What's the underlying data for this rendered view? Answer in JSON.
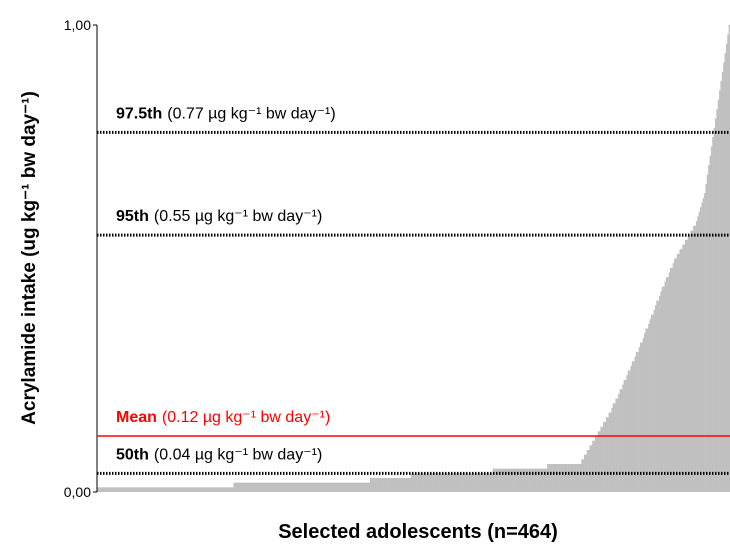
{
  "chart_data": {
    "type": "bar",
    "y_label": "Acrylamide intake (ug kg⁻¹ bw day⁻¹)",
    "x_label": "Selected adolescents (n=464)",
    "color": "#c0c0c0",
    "ylim": [
      0,
      1
    ],
    "yticks": [
      {
        "value": 0,
        "label": "0,00"
      },
      {
        "value": 1,
        "label": "1,00"
      }
    ],
    "reference_lines": [
      {
        "name": "97.5th",
        "value": 0.77,
        "label": "(0.77 µg kg⁻¹ bw day⁻¹)",
        "color": "#000000",
        "style": "dotted"
      },
      {
        "name": "95th",
        "value": 0.55,
        "label": "(0.55 µg kg⁻¹ bw day⁻¹)",
        "color": "#000000",
        "style": "dotted"
      },
      {
        "name": "Mean",
        "value": 0.12,
        "label": "(0.12 µg kg⁻¹ bw day⁻¹)",
        "color": "#ff0000",
        "style": "solid"
      },
      {
        "name": "50th",
        "value": 0.04,
        "label": "(0.04 µg kg⁻¹ bw day⁻¹)",
        "color": "#000000",
        "style": "dotted"
      }
    ],
    "values": [
      0.01,
      0.01,
      0.01,
      0.01,
      0.01,
      0.01,
      0.01,
      0.01,
      0.01,
      0.01,
      0.01,
      0.01,
      0.01,
      0.01,
      0.01,
      0.01,
      0.01,
      0.01,
      0.01,
      0.01,
      0.01,
      0.01,
      0.01,
      0.01,
      0.01,
      0.01,
      0.01,
      0.01,
      0.01,
      0.01,
      0.01,
      0.01,
      0.01,
      0.01,
      0.01,
      0.01,
      0.01,
      0.01,
      0.01,
      0.01,
      0.01,
      0.01,
      0.01,
      0.01,
      0.01,
      0.01,
      0.01,
      0.01,
      0.01,
      0.01,
      0.01,
      0.01,
      0.01,
      0.01,
      0.01,
      0.01,
      0.01,
      0.01,
      0.01,
      0.01,
      0.01,
      0.01,
      0.01,
      0.01,
      0.01,
      0.01,
      0.01,
      0.01,
      0.01,
      0.01,
      0.01,
      0.01,
      0.01,
      0.01,
      0.01,
      0.01,
      0.01,
      0.01,
      0.01,
      0.01,
      0.01,
      0.01,
      0.01,
      0.01,
      0.01,
      0.01,
      0.01,
      0.01,
      0.01,
      0.01,
      0.01,
      0.01,
      0.01,
      0.01,
      0.01,
      0.01,
      0.01,
      0.01,
      0.01,
      0.01,
      0.02,
      0.02,
      0.02,
      0.02,
      0.02,
      0.02,
      0.02,
      0.02,
      0.02,
      0.02,
      0.02,
      0.02,
      0.02,
      0.02,
      0.02,
      0.02,
      0.02,
      0.02,
      0.02,
      0.02,
      0.02,
      0.02,
      0.02,
      0.02,
      0.02,
      0.02,
      0.02,
      0.02,
      0.02,
      0.02,
      0.02,
      0.02,
      0.02,
      0.02,
      0.02,
      0.02,
      0.02,
      0.02,
      0.02,
      0.02,
      0.02,
      0.02,
      0.02,
      0.02,
      0.02,
      0.02,
      0.02,
      0.02,
      0.02,
      0.02,
      0.02,
      0.02,
      0.02,
      0.02,
      0.02,
      0.02,
      0.02,
      0.02,
      0.02,
      0.02,
      0.02,
      0.02,
      0.02,
      0.02,
      0.02,
      0.02,
      0.02,
      0.02,
      0.02,
      0.02,
      0.02,
      0.02,
      0.02,
      0.02,
      0.02,
      0.02,
      0.02,
      0.02,
      0.02,
      0.02,
      0.02,
      0.02,
      0.02,
      0.02,
      0.02,
      0.02,
      0.02,
      0.02,
      0.02,
      0.02,
      0.02,
      0.02,
      0.02,
      0.02,
      0.02,
      0.02,
      0.02,
      0.02,
      0.02,
      0.02,
      0.03,
      0.03,
      0.03,
      0.03,
      0.03,
      0.03,
      0.03,
      0.03,
      0.03,
      0.03,
      0.03,
      0.03,
      0.03,
      0.03,
      0.03,
      0.03,
      0.03,
      0.03,
      0.03,
      0.03,
      0.03,
      0.03,
      0.03,
      0.03,
      0.03,
      0.03,
      0.03,
      0.03,
      0.03,
      0.03,
      0.04,
      0.04,
      0.04,
      0.04,
      0.04,
      0.04,
      0.04,
      0.04,
      0.04,
      0.04,
      0.04,
      0.04,
      0.04,
      0.04,
      0.04,
      0.04,
      0.04,
      0.04,
      0.04,
      0.04,
      0.04,
      0.04,
      0.04,
      0.04,
      0.04,
      0.04,
      0.04,
      0.04,
      0.04,
      0.04,
      0.04,
      0.04,
      0.04,
      0.04,
      0.04,
      0.04,
      0.04,
      0.04,
      0.04,
      0.04,
      0.04,
      0.04,
      0.04,
      0.04,
      0.04,
      0.04,
      0.04,
      0.04,
      0.04,
      0.04,
      0.04,
      0.04,
      0.04,
      0.04,
      0.04,
      0.04,
      0.04,
      0.04,
      0.04,
      0.04,
      0.05,
      0.05,
      0.05,
      0.05,
      0.05,
      0.05,
      0.05,
      0.05,
      0.05,
      0.05,
      0.05,
      0.05,
      0.05,
      0.05,
      0.05,
      0.05,
      0.05,
      0.05,
      0.05,
      0.05,
      0.05,
      0.05,
      0.05,
      0.05,
      0.05,
      0.05,
      0.05,
      0.05,
      0.05,
      0.05,
      0.05,
      0.05,
      0.05,
      0.05,
      0.05,
      0.05,
      0.05,
      0.05,
      0.05,
      0.05,
      0.06,
      0.06,
      0.06,
      0.06,
      0.06,
      0.06,
      0.06,
      0.06,
      0.06,
      0.06,
      0.06,
      0.06,
      0.06,
      0.06,
      0.06,
      0.06,
      0.06,
      0.06,
      0.06,
      0.06,
      0.06,
      0.06,
      0.06,
      0.06,
      0.06,
      0.07,
      0.07,
      0.08,
      0.08,
      0.09,
      0.09,
      0.1,
      0.1,
      0.11,
      0.11,
      0.12,
      0.12,
      0.13,
      0.13,
      0.14,
      0.14,
      0.15,
      0.15,
      0.16,
      0.16,
      0.17,
      0.17,
      0.18,
      0.19,
      0.19,
      0.2,
      0.2,
      0.21,
      0.22,
      0.22,
      0.23,
      0.24,
      0.24,
      0.25,
      0.26,
      0.26,
      0.27,
      0.28,
      0.28,
      0.29,
      0.3,
      0.3,
      0.31,
      0.32,
      0.32,
      0.33,
      0.34,
      0.35,
      0.35,
      0.36,
      0.37,
      0.38,
      0.38,
      0.39,
      0.4,
      0.41,
      0.41,
      0.42,
      0.43,
      0.44,
      0.44,
      0.45,
      0.46,
      0.46,
      0.47,
      0.48,
      0.48,
      0.49,
      0.5,
      0.5,
      0.51,
      0.51,
      0.52,
      0.52,
      0.53,
      0.53,
      0.54,
      0.54,
      0.55,
      0.55,
      0.56,
      0.56,
      0.57,
      0.57,
      0.58,
      0.59,
      0.6,
      0.61,
      0.62,
      0.63,
      0.64,
      0.66,
      0.68,
      0.7,
      0.72,
      0.74,
      0.76,
      0.78,
      0.8,
      0.82,
      0.84,
      0.86,
      0.88,
      0.9,
      0.92,
      0.94,
      0.96,
      0.98,
      1.0
    ]
  }
}
